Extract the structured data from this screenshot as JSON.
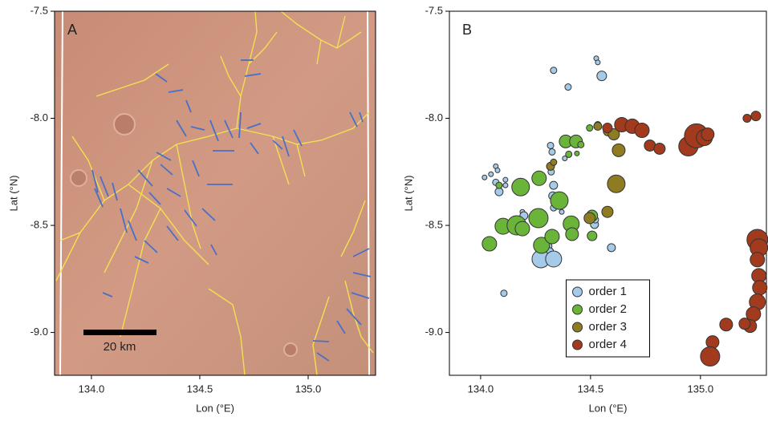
{
  "chart_data": [
    {
      "type": "map",
      "panel_label": "A",
      "scale_label": "20 km",
      "x_label": "Lon (°E)",
      "y_label": "Lat (°N)",
      "xlim": [
        133.83,
        135.311
      ],
      "ylim": [
        -9.2,
        -7.5
      ],
      "xticks": [
        {
          "value": 134,
          "label": "134.0"
        },
        134.5,
        {
          "value": 135,
          "label": "135.0"
        }
      ],
      "yticks": [
        -7.5,
        {
          "value": -8,
          "label": "-8.0"
        },
        -8.5,
        {
          "value": -9,
          "label": "-9.0"
        }
      ]
    },
    {
      "type": "scatter",
      "panel_label": "B",
      "x_label": "Lon (°E)",
      "y_label": "Lat (°N)",
      "xlim": [
        133.858,
        135.3
      ],
      "ylim": [
        -9.2,
        -7.5
      ],
      "xticks": [
        {
          "value": 134,
          "label": "134.0"
        },
        134.5,
        {
          "value": 135,
          "label": "135.0"
        }
      ],
      "yticks": [
        -7.5,
        {
          "value": -8,
          "label": "-8.0"
        },
        -8.5,
        {
          "value": -9,
          "label": "-9.0"
        }
      ],
      "legend": "lower center",
      "series": [
        {
          "name": "order 1",
          "color": "#a6cbe9",
          "x": [
            134.332,
            134.398,
            134.526,
            134.533,
            134.551,
            134.318,
            134.325,
            134.383,
            134.018,
            134.047,
            134.069,
            134.077,
            134.069,
            134.113,
            134.084,
            134.113,
            134.321,
            134.332,
            134.328,
            134.332,
            134.19,
            134.197,
            134.369,
            134.518,
            134.522,
            134.595,
            134.31,
            134.314,
            134.274,
            134.332,
            134.106
          ],
          "values": [
            -7.776,
            -7.854,
            -7.72,
            -7.739,
            -7.802,
            -8.127,
            -8.157,
            -8.187,
            -8.276,
            -8.261,
            -8.224,
            -8.243,
            -8.299,
            -8.287,
            -8.343,
            -8.313,
            -8.25,
            -8.313,
            -8.362,
            -8.418,
            -8.437,
            -8.455,
            -8.437,
            -8.496,
            -8.474,
            -8.604,
            -8.597,
            -8.623,
            -8.657,
            -8.657,
            -8.817
          ],
          "sizes": [
            4,
            4,
            3,
            3,
            6,
            4,
            4,
            3,
            3,
            3,
            3,
            3,
            4,
            3,
            5,
            3,
            4,
            5,
            5,
            4,
            3,
            5,
            3,
            5,
            4,
            5,
            4,
            5,
            11,
            10,
            4
          ]
        },
        {
          "name": "order 2",
          "color": "#6ab43a",
          "x": [
            134.04,
            134.182,
            134.266,
            134.358,
            134.387,
            134.434,
            134.456,
            134.401,
            134.438,
            134.496,
            134.533,
            134.102,
            134.164,
            134.19,
            134.263,
            134.277,
            134.325,
            134.412,
            134.416,
            134.507,
            134.507,
            134.084
          ],
          "values": [
            -8.586,
            -8.321,
            -8.28,
            -8.384,
            -8.108,
            -8.108,
            -8.123,
            -8.168,
            -8.164,
            -8.045,
            -8.03,
            -8.504,
            -8.5,
            -8.515,
            -8.466,
            -8.593,
            -8.552,
            -8.493,
            -8.541,
            -8.549,
            -8.455,
            -8.313
          ],
          "sizes": [
            9,
            11,
            9,
            11,
            8,
            8,
            4,
            4,
            3,
            4,
            4,
            10,
            12,
            9,
            12,
            10,
            9,
            10,
            8,
            6,
            7,
            4
          ]
        },
        {
          "name": "order 3",
          "color": "#8e7b22",
          "x": [
            134.533,
            134.58,
            134.606,
            134.628,
            134.617,
            134.577,
            134.496,
            134.318,
            134.332
          ],
          "values": [
            -8.037,
            -8.06,
            -8.075,
            -8.149,
            -8.306,
            -8.437,
            -8.466,
            -8.224,
            -8.205
          ],
          "sizes": [
            5,
            6,
            7,
            8,
            11,
            7,
            7,
            5,
            4
          ]
        },
        {
          "name": "order 4",
          "color": "#a23a1e",
          "x": [
            134.577,
            134.642,
            134.69,
            134.734,
            134.77,
            134.814,
            134.945,
            134.982,
            135.018,
            135.033,
            135.212,
            135.252,
            135.259,
            135.266,
            135.259,
            135.266,
            135.27,
            135.259,
            135.241,
            135.226,
            135.201,
            135.117,
            135.055,
            135.044
          ],
          "values": [
            -8.045,
            -8.03,
            -8.037,
            -8.056,
            -8.127,
            -8.142,
            -8.131,
            -8.082,
            -8.09,
            -8.075,
            -8.0,
            -7.989,
            -8.567,
            -8.604,
            -8.66,
            -8.735,
            -8.791,
            -8.858,
            -8.914,
            -8.97,
            -8.959,
            -8.963,
            -9.045,
            -9.112
          ],
          "sizes": [
            6,
            9,
            9,
            9,
            7,
            7,
            12,
            15,
            10,
            8,
            5,
            6,
            13,
            11,
            9,
            9,
            9,
            10,
            9,
            8,
            7,
            8,
            8,
            12
          ]
        }
      ]
    }
  ]
}
